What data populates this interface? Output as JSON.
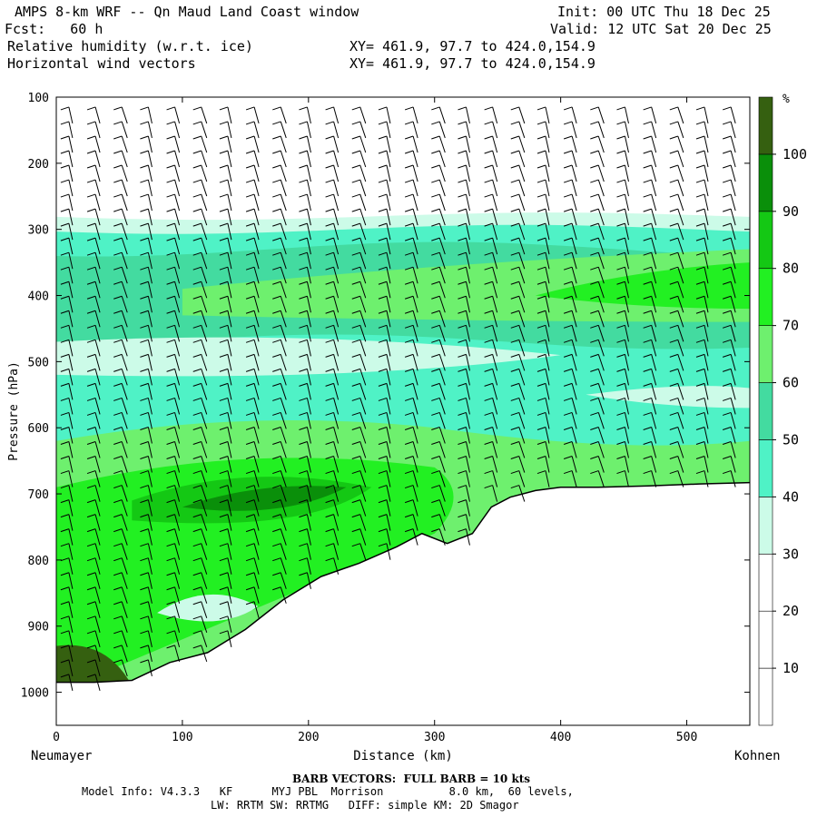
{
  "header": {
    "title": "AMPS 8-km WRF -- Qn Maud Land Coast window",
    "init": "Init: 00 UTC Thu 18 Dec 25",
    "forecast": "Fcst:   60 h",
    "valid": "Valid: 12 UTC Sat 20 Dec 25",
    "field1": "Relative humidity (w.r.t. ice)",
    "field2": "Horizontal wind vectors",
    "xy1": "XY= 461.9, 97.7 to 424.0,154.9",
    "xy2": "XY= 461.9, 97.7 to 424.0,154.9"
  },
  "chart_data": {
    "type": "cross-section (filled contour + wind barbs)",
    "title": "Relative humidity (w.r.t. ice) and Horizontal wind vectors",
    "xlabel": "Distance (km)",
    "ylabel": "Pressure (hPa)",
    "xlim": [
      0,
      550
    ],
    "ylim": [
      1050,
      100
    ],
    "x_ticks": [
      0,
      100,
      200,
      300,
      400,
      500
    ],
    "y_ticks": [
      100,
      200,
      300,
      400,
      500,
      600,
      700,
      800,
      900,
      1000
    ],
    "left_endpoint": "Neumayer",
    "right_endpoint": "Kohnen",
    "colorbar": {
      "unit": "%",
      "levels": [
        10,
        20,
        30,
        40,
        50,
        60,
        70,
        80,
        90,
        100
      ],
      "colors": [
        "#ffffff",
        "#ffffff",
        "#ffffff",
        "#ccfbe8",
        "#4ff2c6",
        "#43dba0",
        "#6ef06e",
        "#22f022",
        "#14c814",
        "#0a8f0a",
        "#356010"
      ]
    },
    "terrain_surface": {
      "distance_km": [
        0,
        30,
        60,
        90,
        120,
        150,
        180,
        210,
        240,
        270,
        290,
        310,
        330,
        345,
        360,
        380,
        400,
        430,
        470,
        510,
        550
      ],
      "pressure_hpa": [
        985,
        985,
        982,
        955,
        940,
        905,
        860,
        825,
        805,
        780,
        760,
        775,
        760,
        720,
        705,
        695,
        690,
        690,
        688,
        685,
        683
      ]
    },
    "rh_regions_percent": [
      {
        "layer_hpa": [
          100,
          280
        ],
        "rh": "<30"
      },
      {
        "layer_hpa": [
          280,
          320
        ],
        "rh": "30-40"
      },
      {
        "layer_hpa": [
          320,
          480
        ],
        "rh": "40-70"
      },
      {
        "layer_hpa": [
          480,
          520
        ],
        "rh": "30-40"
      },
      {
        "layer_hpa": [
          520,
          650
        ],
        "rh": "40-70"
      },
      {
        "layer_hpa": [
          650,
          750
        ],
        "rh": "60-90"
      },
      {
        "layer_hpa": [
          750,
          985
        ],
        "rh": "60-100"
      }
    ],
    "barb_note": "BARB VECTORS:  FULL BARB = 10 kts"
  },
  "footer": {
    "barb_note": "BARB VECTORS:  FULL BARB = 10 kts",
    "model_line": "Model Info: V4.3.3   KF      MYJ PBL  Morrison          8.0 km,  60 levels,",
    "physics_line": "LW: RRTM SW: RRTMG   DIFF: simple KM: 2D Smagor"
  }
}
